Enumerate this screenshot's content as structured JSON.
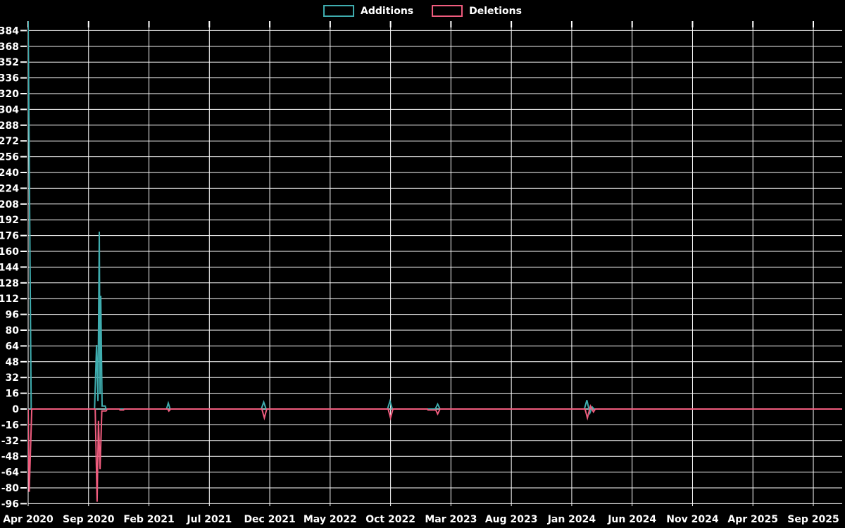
{
  "page": {
    "background": "#000000",
    "text_color": "#ffffff",
    "grid_color": "#ffffff",
    "zero_line_color": "#9db8ba"
  },
  "legend": {
    "position": "top-center",
    "items": [
      {
        "label": "Additions",
        "color": "#3fadaf"
      },
      {
        "label": "Deletions",
        "color": "#f05c7e"
      }
    ]
  },
  "chart_data": {
    "type": "line",
    "title": "",
    "xlabel": "",
    "ylabel": "",
    "grid": true,
    "legend_position": "top-center",
    "x_unit": "months since Apr 2020; one tick every 5 months",
    "x_ticks": [
      "Apr 2020",
      "Sep 2020",
      "Feb 2021",
      "Jul 2021",
      "Dec 2021",
      "May 2022",
      "Oct 2022",
      "Mar 2023",
      "Aug 2023",
      "Jan 2024",
      "Jun 2024",
      "Nov 2024",
      "Apr 2025",
      "Sep 2025"
    ],
    "y_ticks": [
      384,
      368,
      352,
      336,
      320,
      304,
      288,
      272,
      256,
      240,
      224,
      208,
      192,
      176,
      160,
      144,
      128,
      112,
      96,
      80,
      64,
      48,
      32,
      16,
      0,
      -16,
      -32,
      -48,
      -64,
      -80,
      -96
    ],
    "ylim": [
      -99,
      394
    ],
    "xlim_months": [
      0,
      67.4
    ],
    "series": [
      {
        "name": "Additions",
        "color": "#3fadaf",
        "points": [
          [
            0,
            394
          ],
          [
            0.25,
            0
          ],
          [
            5.5,
            0
          ],
          [
            5.66,
            65
          ],
          [
            5.78,
            8
          ],
          [
            5.89,
            180
          ],
          [
            5.95,
            15
          ],
          [
            6.01,
            115
          ],
          [
            6.12,
            3
          ],
          [
            6.38,
            3
          ],
          [
            6.45,
            0
          ],
          [
            11.45,
            0
          ],
          [
            11.6,
            6
          ],
          [
            11.75,
            0
          ],
          [
            19.3,
            0
          ],
          [
            19.5,
            7
          ],
          [
            19.7,
            0
          ],
          [
            29.75,
            0
          ],
          [
            29.95,
            8
          ],
          [
            30.15,
            0
          ],
          [
            33.7,
            0
          ],
          [
            33.9,
            5
          ],
          [
            34.1,
            0
          ],
          [
            46.05,
            0
          ],
          [
            46.25,
            9
          ],
          [
            46.5,
            -4
          ],
          [
            46.7,
            2
          ],
          [
            46.85,
            0
          ],
          [
            67.4,
            0
          ]
        ]
      },
      {
        "name": "Deletions",
        "color": "#f05c7e",
        "points": [
          [
            0,
            0
          ],
          [
            0.09,
            -84
          ],
          [
            0.3,
            0
          ],
          [
            5.55,
            0
          ],
          [
            5.71,
            -94
          ],
          [
            5.82,
            -12
          ],
          [
            5.95,
            -61
          ],
          [
            6.1,
            -2
          ],
          [
            6.45,
            -2
          ],
          [
            6.55,
            0
          ],
          [
            7.55,
            0
          ],
          [
            7.6,
            -1
          ],
          [
            7.9,
            -1
          ],
          [
            7.95,
            0
          ],
          [
            11.55,
            0
          ],
          [
            11.65,
            -2
          ],
          [
            11.8,
            0
          ],
          [
            19.35,
            0
          ],
          [
            19.55,
            -9
          ],
          [
            19.75,
            0
          ],
          [
            29.8,
            0
          ],
          [
            30.0,
            -9
          ],
          [
            30.2,
            0
          ],
          [
            33.05,
            0
          ],
          [
            33.1,
            -1
          ],
          [
            33.75,
            -1
          ],
          [
            33.9,
            -5
          ],
          [
            34.1,
            0
          ],
          [
            46.1,
            0
          ],
          [
            46.3,
            -9
          ],
          [
            46.55,
            3
          ],
          [
            46.8,
            -3
          ],
          [
            46.95,
            0
          ],
          [
            67.4,
            0
          ]
        ]
      }
    ]
  }
}
